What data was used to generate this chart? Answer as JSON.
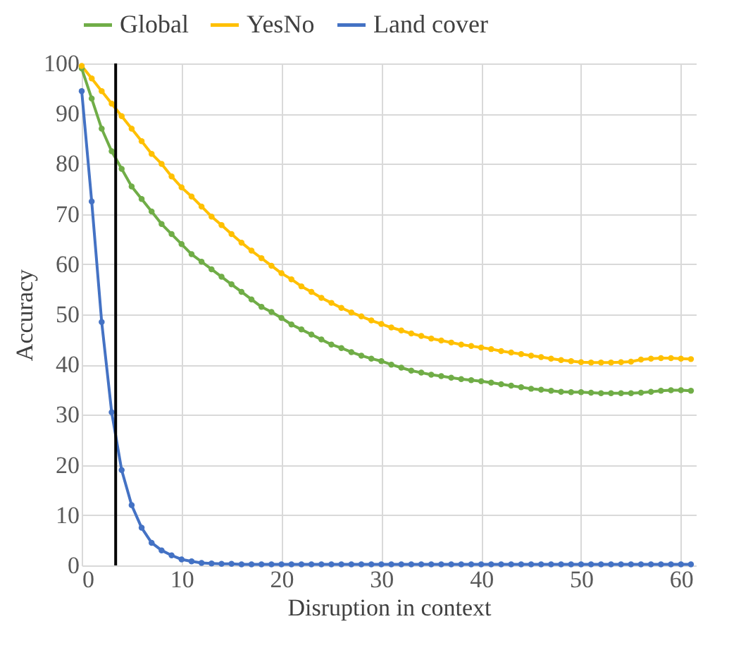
{
  "chart_data": {
    "type": "line",
    "xlabel": "Disruption in context",
    "ylabel": "Accuracy",
    "x": [
      0,
      1,
      2,
      3,
      4,
      5,
      6,
      7,
      8,
      9,
      10,
      11,
      12,
      13,
      14,
      15,
      16,
      17,
      18,
      19,
      20,
      21,
      22,
      23,
      24,
      25,
      26,
      27,
      28,
      29,
      30,
      31,
      32,
      33,
      34,
      35,
      36,
      37,
      38,
      39,
      40,
      41,
      42,
      43,
      44,
      45,
      46,
      47,
      48,
      49,
      50,
      51,
      52,
      53,
      54,
      55,
      56,
      57,
      58,
      59,
      60,
      61
    ],
    "series": [
      {
        "name": "Global",
        "color": "#70ad47",
        "values": [
          99,
          93,
          87,
          82.5,
          79,
          75.5,
          73,
          70.5,
          68,
          66,
          64,
          62,
          60.5,
          59,
          57.5,
          56,
          54.5,
          53,
          51.5,
          50.5,
          49.3,
          48,
          47,
          46,
          45,
          44,
          43.3,
          42.5,
          41.8,
          41.2,
          40.7,
          40,
          39.4,
          38.8,
          38.4,
          38,
          37.7,
          37.4,
          37.1,
          36.9,
          36.7,
          36.4,
          36.1,
          35.8,
          35.5,
          35.2,
          35,
          34.8,
          34.6,
          34.5,
          34.5,
          34.4,
          34.3,
          34.3,
          34.3,
          34.3,
          34.4,
          34.6,
          34.8,
          34.9,
          34.9,
          34.8
        ]
      },
      {
        "name": "YesNo",
        "color": "#ffc000",
        "values": [
          99.5,
          97,
          94.5,
          92,
          89.5,
          87,
          84.5,
          82,
          80,
          77.5,
          75.3,
          73.5,
          71.5,
          69.5,
          67.8,
          66,
          64.3,
          62.7,
          61.2,
          59.7,
          58.2,
          57,
          55.6,
          54.5,
          53.3,
          52.3,
          51.3,
          50.4,
          49.6,
          48.8,
          48.1,
          47.4,
          46.8,
          46.2,
          45.7,
          45.2,
          44.8,
          44.4,
          44,
          43.7,
          43.4,
          43.1,
          42.7,
          42.4,
          42.1,
          41.8,
          41.5,
          41.2,
          40.9,
          40.7,
          40.5,
          40.4,
          40.4,
          40.4,
          40.5,
          40.6,
          41,
          41.2,
          41.3,
          41.3,
          41.2,
          41.1
        ]
      },
      {
        "name": "Land cover",
        "color": "#4472c4",
        "values": [
          94.5,
          72.5,
          48.5,
          30.5,
          19,
          12,
          7.5,
          4.5,
          3,
          2,
          1.2,
          0.8,
          0.5,
          0.4,
          0.3,
          0.3,
          0.2,
          0.2,
          0.2,
          0.2,
          0.2,
          0.2,
          0.2,
          0.2,
          0.2,
          0.2,
          0.2,
          0.2,
          0.2,
          0.2,
          0.2,
          0.2,
          0.2,
          0.2,
          0.2,
          0.2,
          0.2,
          0.2,
          0.2,
          0.2,
          0.2,
          0.2,
          0.2,
          0.2,
          0.2,
          0.2,
          0.2,
          0.2,
          0.2,
          0.2,
          0.2,
          0.2,
          0.2,
          0.2,
          0.2,
          0.2,
          0.2,
          0.2,
          0.2,
          0.2,
          0.2,
          0.2
        ]
      }
    ],
    "xlim": [
      0,
      61.5
    ],
    "xticks": [
      0,
      10,
      20,
      30,
      40,
      50,
      60
    ],
    "ylim": [
      0,
      100
    ],
    "yticks": [
      0,
      10,
      20,
      30,
      40,
      50,
      60,
      70,
      80,
      90,
      100
    ],
    "ref_lines": [
      {
        "axis": "x",
        "value": 3.4,
        "color": "#000000"
      }
    ],
    "grid": true,
    "legend": "top",
    "marker": "circle",
    "line_style": "solid"
  }
}
